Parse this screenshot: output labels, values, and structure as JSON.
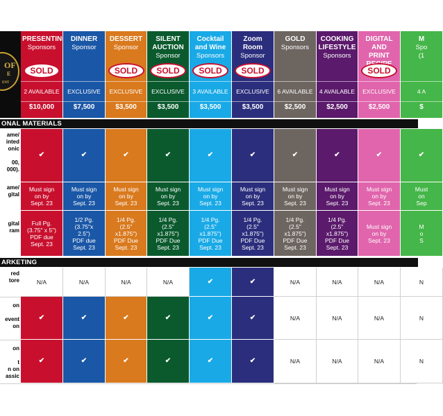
{
  "logo": {
    "line1": "OF",
    "line2": "E",
    "line3": "ENT"
  },
  "sections": {
    "materials": "ONAL MATERIALS",
    "marketing": "ARKETING"
  },
  "row_labels": {
    "r1": "ame/\ninted\nonic\n\n00,\n000).",
    "r2": "ame/\ngital",
    "r3": "gital\nram",
    "r4": "red\ntore",
    "r5": "on\n\nevent\non",
    "r6": "on\n\nt\nn on\nassic"
  },
  "check_mark": "✔",
  "na_text": "N/A",
  "sold_text": "SOLD",
  "colors": {
    "presenting": "#c8102e",
    "dinner": "#1a57a6",
    "dessert": "#d97a1e",
    "silent": "#0b5a2e",
    "cocktail": "#19a9e6",
    "zoom": "#2b2e7c",
    "gold": "#6d6560",
    "cooking": "#5b1a6b",
    "recipe": "#e065ac",
    "last": "#45b649"
  },
  "sponsors": [
    {
      "name": "PRESENTING",
      "sub": "Sponsors",
      "sold": true,
      "avail": "2 AVAILABLE",
      "price": "$10,000",
      "materials": [
        "✔",
        "Must sign\non by\nSept. 23",
        "Full Pg.\n(3.75\" x 5\")\nPDF due\nSept. 23"
      ],
      "marketing": [
        "N/A",
        "✔",
        "✔"
      ]
    },
    {
      "name": "DINNER",
      "sub": "Sponsor",
      "sold": false,
      "avail": "EXCLUSIVE",
      "price": "$7,500",
      "materials": [
        "✔",
        "Must sign\non by\nSept. 23",
        "1/2 Pg.\n(3.75\"x\n2.5\")\nPDF due\nSept. 23"
      ],
      "marketing": [
        "N/A",
        "✔",
        "✔"
      ]
    },
    {
      "name": "DESSERT",
      "sub": "Sponsor",
      "sold": true,
      "avail": "EXCLUSIVE",
      "price": "$3,500",
      "materials": [
        "✔",
        "Must sign\non by\nSept. 23",
        "1/4 Pg.\n(2.5\"\nx1.875\")\nPDF Due\nSept. 23"
      ],
      "marketing": [
        "N/A",
        "✔",
        "✔"
      ]
    },
    {
      "name": "SILENT\nAUCTION",
      "sub": "Sponsor",
      "sold": true,
      "avail": "EXCLUSIVE",
      "price": "$3,500",
      "materials": [
        "✔",
        "Must sign\non by\nSept. 23",
        "1/4 Pg.\n(2.5\"\nx1.875\")\nPDF Due\nSept. 23"
      ],
      "marketing": [
        "N/A",
        "✔",
        "✔"
      ]
    },
    {
      "name": "Cocktail\nand Wine",
      "sub": "Sponsors",
      "sold": true,
      "avail": "3 AVAILABLE",
      "price": "$3,500",
      "materials": [
        "✔",
        "Must sign\non by\nSept. 23",
        "1/4 Pg.\n(2.5\"\nx1.875\")\nPDF Due\nSept. 23"
      ],
      "marketing": [
        "✔",
        "✔",
        "✔"
      ]
    },
    {
      "name": "Zoom\nRoom",
      "sub": "Sponsor",
      "sold": true,
      "avail": "EXCLUSIVE",
      "price": "$3,500",
      "materials": [
        "✔",
        "Must sign\non by\nSept. 23",
        "1/4 Pg.\n(2.5\"\nx1.875\")\nPDF Due\nSept. 23"
      ],
      "marketing": [
        "✔",
        "✔",
        "✔"
      ]
    },
    {
      "name": "GOLD",
      "sub": "Sponsors",
      "sold": false,
      "avail": "6 AVAILABLE",
      "price": "$2,500",
      "materials": [
        "✔",
        "Must sign\non by\nSept. 23",
        "1/4 Pg.\n(2.5\"\nx1.875\")\nPDF Due\nSept. 23"
      ],
      "marketing": [
        "N/A",
        "N/A",
        "N/A"
      ]
    },
    {
      "name": "COOKING\nLIFESTYLE",
      "sub": "Sponsors",
      "sold": false,
      "avail": "4 AVAILABLE",
      "price": "$2,500",
      "materials": [
        "✔",
        "Must sign\non by\nSept. 23",
        "1/4 Pg.\n(2.5\"\nx1.875\")\nPDF Due\nSept. 23"
      ],
      "marketing": [
        "N/A",
        "N/A",
        "N/A"
      ]
    },
    {
      "name": "DIGITAL AND\nPRINT RECIPE\nCARDS",
      "sub": "",
      "sold": true,
      "avail": "EXCLUSIVE",
      "price": "$2,500",
      "materials": [
        "✔",
        "Must sign\non by\nSept. 23",
        "Must sign\non by\nSept. 23"
      ],
      "marketing": [
        "N/A",
        "N/A",
        "N/A"
      ]
    },
    {
      "name": "M",
      "sub": "Spo\n(1",
      "sold": false,
      "avail": "4 A",
      "price": "$",
      "materials": [
        "✔",
        "Must\non\nSep",
        "M\no\nS"
      ],
      "marketing": [
        "N",
        "N",
        "N"
      ]
    }
  ]
}
